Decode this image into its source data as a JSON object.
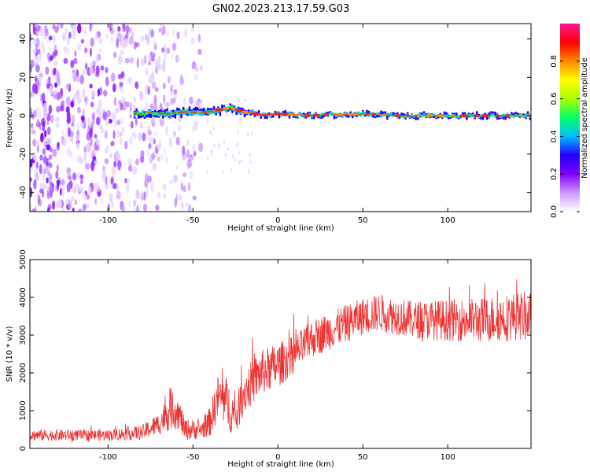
{
  "title": "GN02.2023.213.17.59.G03",
  "chart_data": [
    {
      "type": "heatmap",
      "xlabel": "Height of straight line (km)",
      "ylabel": "Frequency (Hz)",
      "xlim": [
        -146,
        149
      ],
      "ylim": [
        -50,
        48
      ],
      "x_ticks": [
        -100,
        -50,
        0,
        50,
        100
      ],
      "y_ticks": [
        -40,
        -20,
        0,
        20,
        40
      ],
      "colorbar": {
        "label": "Normalized spectral amplitude",
        "range": [
          0,
          1
        ],
        "ticks": [
          "0.0",
          "0.2",
          "0.4",
          "0.6",
          "0.8"
        ],
        "colormap": [
          "#ffffff",
          "#cc99ff",
          "#7f00ff",
          "#2200ff",
          "#00bfff",
          "#00ff66",
          "#aaff00",
          "#ffff00",
          "#ff8800",
          "#ff0000",
          "#ff1493"
        ]
      },
      "ridge": {
        "x": [
          -85,
          -75,
          -65,
          -55,
          -45,
          -35,
          -28,
          -20,
          -10,
          0,
          10,
          20,
          30,
          40,
          50,
          60,
          70,
          80,
          90,
          100,
          110,
          120,
          130,
          140,
          149
        ],
        "frequency": [
          1,
          1.5,
          1,
          2,
          1.5,
          3,
          4,
          2,
          0.5,
          1,
          0.5,
          0,
          0.5,
          0.5,
          1,
          0.5,
          0,
          0,
          0,
          0,
          0,
          0,
          0,
          0,
          0
        ]
      },
      "noise_region": {
        "x_from": -146,
        "x_to": -45
      }
    },
    {
      "type": "line",
      "xlabel": "Height of straight line (km)",
      "ylabel": "SNR (10 * v/v)",
      "xlim": [
        -146,
        149
      ],
      "ylim": [
        0,
        5000
      ],
      "x_ticks": [
        -100,
        -50,
        0,
        50,
        100
      ],
      "y_ticks": [
        0,
        1000,
        2000,
        3000,
        4000,
        5000
      ],
      "color": "#ee3333",
      "envelope": {
        "x": [
          -146,
          -120,
          -100,
          -80,
          -70,
          -62,
          -58,
          -55,
          -45,
          -40,
          -35,
          -30,
          -25,
          -20,
          -10,
          0,
          10,
          20,
          30,
          40,
          50,
          60,
          70,
          80,
          100,
          120,
          140,
          149
        ],
        "mean": [
          350,
          350,
          350,
          420,
          650,
          1100,
          900,
          500,
          500,
          700,
          1400,
          1200,
          800,
          1500,
          2000,
          2200,
          2500,
          2900,
          3100,
          3300,
          3500,
          3600,
          3500,
          3400,
          3400,
          3400,
          3500,
          3500
        ],
        "spread": [
          150,
          150,
          150,
          200,
          300,
          600,
          400,
          300,
          250,
          400,
          600,
          700,
          500,
          600,
          600,
          600,
          500,
          500,
          500,
          500,
          500,
          500,
          500,
          500,
          550,
          600,
          650,
          650
        ]
      }
    }
  ]
}
